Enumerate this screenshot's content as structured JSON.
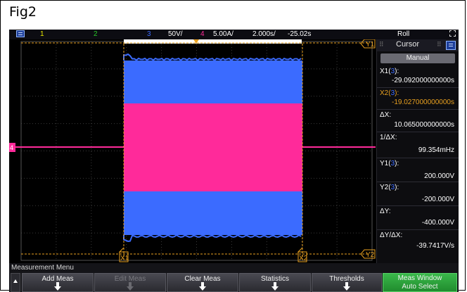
{
  "figure_label": "Fig2",
  "status_bar": {
    "ch1": "1",
    "ch2": "2",
    "ch3": "3",
    "ch3_scale": "50V/",
    "ch4": "4",
    "ch4_scale": "5.00A/",
    "timebase": "2.000s/",
    "delay": "-25.02s",
    "mode": "Roll",
    "colors": {
      "ch1": "#e6e600",
      "ch2": "#28c828",
      "ch3": "#3c6cff",
      "ch4": "#ff2a9a"
    }
  },
  "plot": {
    "markers": {
      "y1": "Y1",
      "y2": "Y2",
      "x1": "X1",
      "x2": "X2",
      "ch4_ground": "4"
    },
    "trace_colors": {
      "blue": "#3b6bff",
      "pink": "#ff2a9a",
      "cursor": "#e8a020"
    }
  },
  "cursor_panel": {
    "title": "Cursor",
    "mode": "Manual",
    "x1_label": "X1(",
    "x1_channel": "3",
    "x1_close": "):",
    "x1_value": "-29.092000000000s",
    "x2_label": "X2(",
    "x2_channel": "3",
    "x2_close": "):",
    "x2_value": "-19.027000000000s",
    "dx_label": "ΔX:",
    "dx_value": "10.065000000000s",
    "inv_dx_label": "1/ΔX:",
    "inv_dx_value": "99.354mHz",
    "y1_label": "Y1(",
    "y1_channel": "3",
    "y1_close": "):",
    "y1_value": "200.000V",
    "y2_label": "Y2(",
    "y2_channel": "3",
    "y2_close": "):",
    "y2_value": "-200.000V",
    "dy_label": "ΔY:",
    "dy_value": "-400.000V",
    "dydx_label": "ΔY/ΔX:",
    "dydx_value": "-39.7417V/s"
  },
  "bottom": {
    "menu_title": "Measurement Menu",
    "softkeys": [
      "Add Meas",
      "Edit Meas",
      "Clear Meas",
      "Statistics",
      "Thresholds"
    ],
    "meas_window_line1": "Meas Window",
    "meas_window_line2": "Auto Select"
  }
}
